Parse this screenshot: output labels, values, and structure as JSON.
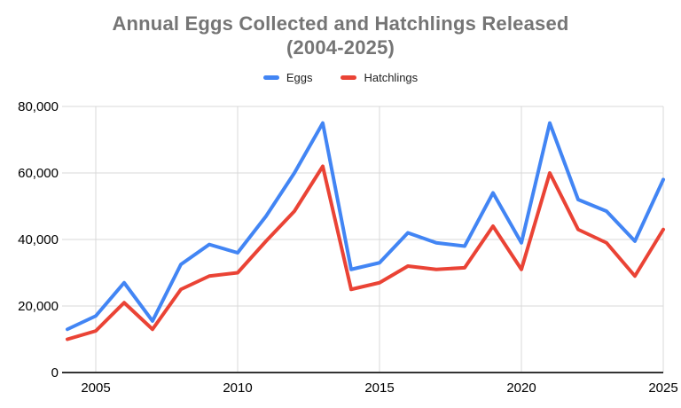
{
  "title": {
    "line1": "Annual Eggs Collected and Hatchlings Released",
    "line2": "(2004-2025)"
  },
  "chart_data": {
    "type": "line",
    "title": "Annual Eggs Collected and Hatchlings Released (2004-2025)",
    "x": [
      2004,
      2005,
      2006,
      2007,
      2008,
      2009,
      2010,
      2011,
      2012,
      2013,
      2014,
      2015,
      2016,
      2017,
      2018,
      2019,
      2020,
      2021,
      2022,
      2023,
      2024,
      2025
    ],
    "series": [
      {
        "name": "Eggs",
        "color": "#4285F4",
        "values": [
          13000,
          17000,
          27000,
          15500,
          32500,
          38500,
          36000,
          47000,
          60000,
          75000,
          31000,
          33000,
          42000,
          39000,
          38000,
          54000,
          39000,
          75000,
          52000,
          48500,
          39500,
          58000
        ]
      },
      {
        "name": "Hatchlings",
        "color": "#EA4335",
        "values": [
          10000,
          12500,
          21000,
          13000,
          25000,
          29000,
          30000,
          39500,
          48500,
          62000,
          25000,
          27000,
          32000,
          31000,
          31500,
          44000,
          31000,
          60000,
          43000,
          39000,
          29000,
          43000
        ]
      }
    ],
    "xlabel": "",
    "ylabel": "",
    "xlim": [
      2004,
      2025
    ],
    "ylim": [
      0,
      80000
    ],
    "yticks": {
      "values": [
        0,
        20000,
        40000,
        60000,
        80000
      ],
      "labels": [
        "0",
        "20,000",
        "40,000",
        "60,000",
        "80,000"
      ]
    },
    "xticks": {
      "values": [
        2005,
        2010,
        2015,
        2020,
        2025
      ],
      "labels": [
        "2005",
        "2010",
        "2015",
        "2020",
        "2025"
      ]
    },
    "grid": true,
    "legend_position": "top"
  },
  "colors": {
    "title_text": "#757575",
    "axis_text": "#000000",
    "legend_text": "#212121",
    "gridline": "#d9d9d9",
    "axis_line": "#333333",
    "background": "#ffffff"
  }
}
